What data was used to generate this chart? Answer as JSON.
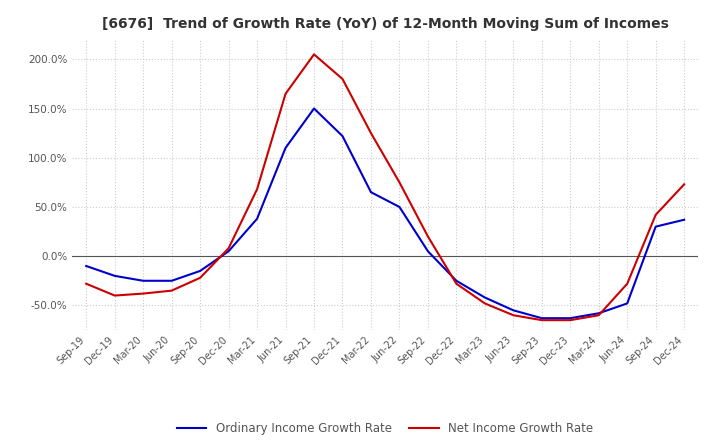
{
  "title": "[6676]  Trend of Growth Rate (YoY) of 12-Month Moving Sum of Incomes",
  "ylim": [
    -75,
    220
  ],
  "yticks": [
    -50,
    0,
    50,
    100,
    150,
    200
  ],
  "background_color": "#ffffff",
  "grid_color": "#cccccc",
  "ordinary_color": "#0000cc",
  "net_color": "#cc0000",
  "legend_ordinary": "Ordinary Income Growth Rate",
  "legend_net": "Net Income Growth Rate",
  "x_labels": [
    "Sep-19",
    "Dec-19",
    "Mar-20",
    "Jun-20",
    "Sep-20",
    "Dec-20",
    "Mar-21",
    "Jun-21",
    "Sep-21",
    "Dec-21",
    "Mar-22",
    "Jun-22",
    "Sep-22",
    "Dec-22",
    "Mar-23",
    "Jun-23",
    "Sep-23",
    "Dec-23",
    "Mar-24",
    "Jun-24",
    "Sep-24",
    "Dec-24"
  ],
  "ordinary_data": [
    -10,
    -20,
    -25,
    -25,
    -15,
    5,
    38,
    110,
    150,
    122,
    65,
    50,
    5,
    -25,
    -42,
    -55,
    -63,
    -63,
    -58,
    -48,
    30,
    37
  ],
  "net_data": [
    -28,
    -40,
    -38,
    -35,
    -22,
    8,
    68,
    165,
    205,
    180,
    125,
    75,
    20,
    -28,
    -48,
    -60,
    -65,
    -65,
    -60,
    -28,
    42,
    73
  ]
}
